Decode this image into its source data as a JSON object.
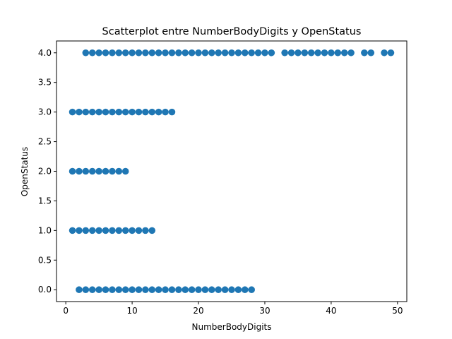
{
  "chart_data": {
    "type": "scatter",
    "title": "Scatterplot entre NumberBodyDigits y OpenStatus",
    "xlabel": "NumberBodyDigits",
    "ylabel": "OpenStatus",
    "xlim": [
      -1.4,
      51.4
    ],
    "ylim": [
      -0.2,
      4.2
    ],
    "xticks": [
      0,
      10,
      20,
      30,
      40,
      50
    ],
    "xtick_labels": [
      "0",
      "10",
      "20",
      "30",
      "40",
      "50"
    ],
    "yticks": [
      0.0,
      0.5,
      1.0,
      1.5,
      2.0,
      2.5,
      3.0,
      3.5,
      4.0
    ],
    "ytick_labels": [
      "0.0",
      "0.5",
      "1.0",
      "1.5",
      "2.0",
      "2.5",
      "3.0",
      "3.5",
      "4.0"
    ],
    "grid": false,
    "marker_color": "#1f77b4",
    "series": [
      {
        "x": [
          3,
          4,
          5,
          6,
          7,
          8,
          9,
          10,
          11,
          12,
          13,
          14,
          15,
          16,
          17,
          18,
          19,
          20,
          21,
          22,
          23,
          24,
          25,
          26,
          27,
          28,
          29,
          30,
          31,
          33,
          34,
          35,
          36,
          37,
          38,
          39,
          40,
          41,
          42,
          43,
          45,
          46,
          48,
          49,
          1,
          2,
          3,
          4,
          5,
          6,
          7,
          8,
          9,
          10,
          11,
          12,
          13,
          14,
          15,
          16,
          1,
          2,
          3,
          4,
          5,
          6,
          7,
          8,
          9,
          1,
          2,
          3,
          4,
          5,
          6,
          7,
          8,
          9,
          10,
          11,
          12,
          13,
          2,
          3,
          4,
          5,
          6,
          7,
          8,
          9,
          10,
          11,
          12,
          13,
          14,
          15,
          16,
          17,
          18,
          19,
          20,
          21,
          22,
          23,
          24,
          25,
          26,
          27,
          28
        ],
        "y": [
          4,
          4,
          4,
          4,
          4,
          4,
          4,
          4,
          4,
          4,
          4,
          4,
          4,
          4,
          4,
          4,
          4,
          4,
          4,
          4,
          4,
          4,
          4,
          4,
          4,
          4,
          4,
          4,
          4,
          4,
          4,
          4,
          4,
          4,
          4,
          4,
          4,
          4,
          4,
          4,
          4,
          4,
          4,
          4,
          3,
          3,
          3,
          3,
          3,
          3,
          3,
          3,
          3,
          3,
          3,
          3,
          3,
          3,
          3,
          3,
          2,
          2,
          2,
          2,
          2,
          2,
          2,
          2,
          2,
          1,
          1,
          1,
          1,
          1,
          1,
          1,
          1,
          1,
          1,
          1,
          1,
          1,
          0,
          0,
          0,
          0,
          0,
          0,
          0,
          0,
          0,
          0,
          0,
          0,
          0,
          0,
          0,
          0,
          0,
          0,
          0,
          0,
          0,
          0,
          0,
          0,
          0,
          0,
          0
        ]
      }
    ]
  }
}
